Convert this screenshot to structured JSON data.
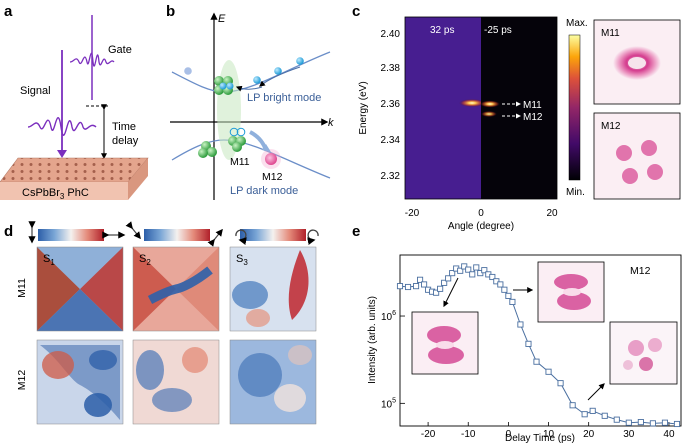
{
  "panels": {
    "a": {
      "letter": "a",
      "gate": "Gate",
      "signal": "Signal",
      "delay_line1": "Time",
      "delay_line2": "delay",
      "sample": "CsPbBr",
      "sample_sub": "3",
      "sample_tail": " PhC"
    },
    "b": {
      "letter": "b",
      "axis_e": "E",
      "axis_k": "k",
      "bright": "LP bright mode",
      "dark": "LP dark mode",
      "m11": "M11",
      "m12": "M12"
    },
    "c": {
      "letter": "c",
      "ylabel": "Energy (eV)",
      "xlabel": "Angle (degree)",
      "yticks": [
        "2.40",
        "2.38",
        "2.36",
        "2.34",
        "2.32"
      ],
      "xticks": [
        "-20",
        "0",
        "20"
      ],
      "t_left": "32 ps",
      "t_right": "-25 ps",
      "m11": "M11",
      "m12": "M12",
      "cb_max": "Max.",
      "cb_min": "Min.",
      "inset1": "M11",
      "inset2": "M12"
    },
    "d": {
      "letter": "d",
      "cols": [
        {
          "s": "S",
          "sub": "1"
        },
        {
          "s": "S",
          "sub": "2"
        },
        {
          "s": "S",
          "sub": "3"
        }
      ],
      "rows": [
        "M11",
        "M12"
      ]
    },
    "e": {
      "letter": "e",
      "ylabel": "Intensity (arb. units)",
      "xlabel": "Delay Time (ps)",
      "tag": "M12",
      "xticks": [
        "-20",
        "-10",
        "0",
        "10",
        "20",
        "30",
        "40"
      ],
      "yticks": [
        {
          "base": "10",
          "exp": "6"
        },
        {
          "base": "10",
          "exp": "5"
        }
      ]
    }
  },
  "chart_data": {
    "type": "scatter",
    "title": "",
    "tag": "M12",
    "xlabel": "Delay Time (ps)",
    "ylabel": "Intensity (arb. units)",
    "xlim": [
      -27,
      43
    ],
    "ylim": [
      55000,
      5000000
    ],
    "yscale": "log",
    "grid": false,
    "series": [
      {
        "marker": "open-square",
        "color": "#4a6fa0",
        "x": [
          -27,
          -25,
          -23,
          -22,
          -21,
          -20,
          -19,
          -18,
          -17,
          -16,
          -15,
          -14,
          -13,
          -12,
          -11,
          -10,
          -9,
          -8,
          -7,
          -6,
          -5,
          -4,
          -3,
          -2,
          -1,
          0,
          1,
          3,
          5,
          7,
          10,
          13,
          16,
          19,
          21,
          24,
          27,
          30,
          33,
          36,
          39,
          42
        ],
        "y": [
          2200000,
          2150000,
          2200000,
          2600000,
          2300000,
          2000000,
          1900000,
          1850000,
          2050000,
          2400000,
          2700000,
          3100000,
          3500000,
          3300000,
          3700000,
          3400000,
          3000000,
          3600000,
          3100000,
          3350000,
          3000000,
          2800000,
          2500000,
          2300000,
          2000000,
          1700000,
          1450000,
          800000,
          480000,
          300000,
          230000,
          170000,
          95000,
          75000,
          82000,
          72000,
          65000,
          60000,
          61000,
          59000,
          60000,
          58000
        ]
      }
    ]
  }
}
